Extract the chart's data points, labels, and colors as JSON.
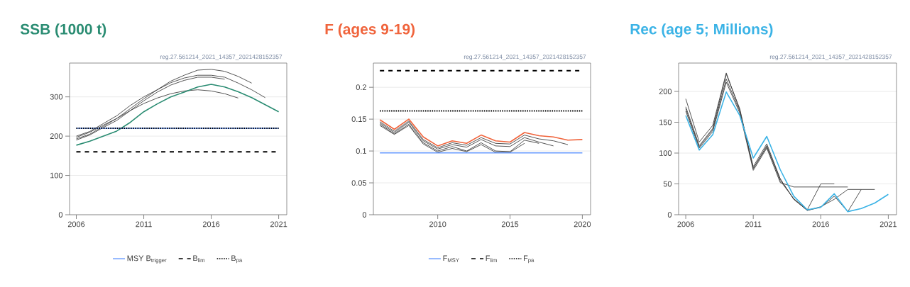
{
  "chart_data": [
    {
      "type": "line",
      "title": "SSB (1000 t)",
      "annotations": [
        "reg.27.561214_2021_14357_2021428152357"
      ],
      "x": [
        2006,
        2007,
        2008,
        2009,
        2010,
        2011,
        2012,
        2013,
        2014,
        2015,
        2016,
        2017,
        2018,
        2019,
        2020,
        2021
      ],
      "xlim": [
        2005.5,
        2021.6
      ],
      "ylim": [
        0,
        386
      ],
      "xticks": [
        2006,
        2011,
        2016,
        2021
      ],
      "yticks": [
        0,
        100,
        200,
        300
      ],
      "grid": "y",
      "legend": "bottom",
      "series": [
        {
          "color": "#404040",
          "values": [
            200,
            212,
            232,
            252,
            278,
            300,
            318,
            336,
            348,
            355,
            355,
            350,
            335,
            318,
            298,
            null
          ]
        },
        {
          "color": "#404040",
          "values": [
            193,
            205,
            225,
            245,
            270,
            295,
            318,
            340,
            355,
            368,
            370,
            365,
            352,
            335,
            null,
            null
          ]
        },
        {
          "color": "#404040",
          "values": [
            197,
            210,
            228,
            245,
            265,
            283,
            297,
            308,
            315,
            318,
            315,
            308,
            297,
            null,
            null,
            null
          ]
        },
        {
          "color": "#404040",
          "values": [
            190,
            203,
            222,
            240,
            265,
            290,
            312,
            330,
            342,
            350,
            350,
            345,
            null,
            null,
            null,
            null
          ]
        },
        {
          "color": "#2a8c72",
          "values": [
            177,
            187,
            200,
            213,
            235,
            262,
            282,
            300,
            312,
            325,
            332,
            325,
            313,
            298,
            280,
            262
          ]
        }
      ],
      "ref_lines": [
        {
          "axis": "y",
          "value": 220,
          "label": "MSY B$_{trigger}$",
          "color": "#6699ff",
          "line_style": "solid"
        },
        {
          "axis": "y",
          "value": 160,
          "label": "B$_{lim}$",
          "color": "#000000",
          "line_style": "dashed"
        },
        {
          "axis": "y",
          "value": 220,
          "label": "B$_{pa}$",
          "color": "#000000",
          "line_style": "dotted"
        }
      ]
    },
    {
      "type": "line",
      "title": "F (ages 9-19)",
      "annotations": [
        "reg.27.561214_2021_14357_2021428152357"
      ],
      "x": [
        2006,
        2007,
        2008,
        2009,
        2010,
        2011,
        2012,
        2013,
        2014,
        2015,
        2016,
        2017,
        2018,
        2019,
        2020
      ],
      "xlim": [
        2005.55,
        2020.57
      ],
      "ylim": [
        0,
        0.238
      ],
      "xticks": [
        2010,
        2015,
        2020
      ],
      "yticks": [
        0,
        0.05,
        0.1,
        0.15,
        0.2
      ],
      "grid": "y",
      "legend": "bottom",
      "series": [
        {
          "color": "#404040",
          "values": [
            0.146,
            0.131,
            0.147,
            0.118,
            0.105,
            0.113,
            0.109,
            0.121,
            0.112,
            0.111,
            0.125,
            0.119,
            0.116,
            0.11,
            null
          ]
        },
        {
          "color": "#404040",
          "values": [
            0.144,
            0.129,
            0.145,
            0.116,
            0.103,
            0.11,
            0.106,
            0.118,
            0.108,
            0.107,
            0.121,
            0.114,
            0.108,
            null,
            null
          ]
        },
        {
          "color": "#404040",
          "values": [
            0.142,
            0.127,
            0.142,
            0.113,
            0.1,
            0.107,
            0.1,
            0.113,
            0.1,
            0.099,
            0.117,
            0.112,
            null,
            null,
            null
          ]
        },
        {
          "color": "#404040",
          "values": [
            0.14,
            0.126,
            0.14,
            0.111,
            0.098,
            0.104,
            0.099,
            0.11,
            0.098,
            0.098,
            0.112,
            null,
            null,
            null,
            null
          ]
        },
        {
          "color": "#f0643c",
          "values": [
            0.149,
            0.134,
            0.15,
            0.122,
            0.108,
            0.116,
            0.112,
            0.125,
            0.116,
            0.114,
            0.129,
            0.124,
            0.122,
            0.117,
            0.118
          ]
        }
      ],
      "ref_lines": [
        {
          "axis": "y",
          "value": 0.097,
          "label": "F$_{MSY}$",
          "color": "#6699ff",
          "line_style": "solid"
        },
        {
          "axis": "y",
          "value": 0.226,
          "label": "F$_{lim}$",
          "color": "#000000",
          "line_style": "dashed"
        },
        {
          "axis": "y",
          "value": 0.163,
          "label": "F$_{pa}$",
          "color": "#000000",
          "line_style": "dotted"
        }
      ]
    },
    {
      "type": "line",
      "title": "Rec (age 5; Millions)",
      "annotations": [
        "reg.27.561214_2021_14357_2021428152357"
      ],
      "x": [
        2006,
        2007,
        2008,
        2009,
        2010,
        2011,
        2012,
        2013,
        2014,
        2015,
        2016,
        2017,
        2018,
        2019,
        2020,
        2021
      ],
      "xlim": [
        2005.47,
        2021.61
      ],
      "ylim": [
        0,
        246
      ],
      "xticks": [
        2006,
        2011,
        2016,
        2021
      ],
      "yticks": [
        0,
        50,
        100,
        150,
        200
      ],
      "grid": "y",
      "series": [
        {
          "color": "#404040",
          "values": [
            172,
            110,
            138,
            220,
            168,
            78,
            115,
            58,
            25,
            7,
            12,
            30,
            5,
            41,
            41,
            null
          ]
        },
        {
          "color": "#404040",
          "values": [
            175,
            112,
            140,
            228,
            172,
            75,
            110,
            58,
            25,
            7,
            13,
            25,
            41,
            41,
            null,
            null
          ]
        },
        {
          "color": "#404040",
          "values": [
            188,
            118,
            145,
            230,
            170,
            75,
            112,
            55,
            26,
            8,
            50,
            50,
            null,
            null,
            null,
            null
          ]
        },
        {
          "color": "#404040",
          "values": [
            168,
            108,
            135,
            215,
            165,
            72,
            108,
            52,
            45,
            45,
            45,
            45,
            45,
            null,
            null,
            null
          ]
        },
        {
          "color": "#3bb3e6",
          "values": [
            161,
            105,
            130,
            199,
            161,
            92,
            127,
            73,
            30,
            8,
            12,
            34,
            5,
            10,
            19,
            33
          ]
        }
      ]
    }
  ]
}
